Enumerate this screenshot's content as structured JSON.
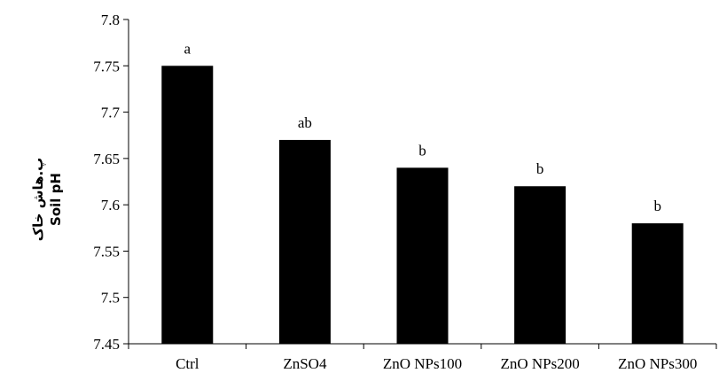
{
  "chart_data": {
    "type": "bar",
    "title": "",
    "xlabel": "",
    "ylabel_lines": [
      "پ.هاش خاک",
      "Soil pH"
    ],
    "categories": [
      "Ctrl",
      "ZnSO4",
      "ZnO NPs100",
      "ZnO NPs200",
      "ZnO NPs300"
    ],
    "values": [
      7.75,
      7.67,
      7.64,
      7.62,
      7.58
    ],
    "data_labels": [
      "a",
      "ab",
      "b",
      "b",
      "b"
    ],
    "ylim": [
      7.45,
      7.8
    ],
    "yticks": [
      7.45,
      7.5,
      7.55,
      7.6,
      7.65,
      7.7,
      7.75,
      7.8
    ],
    "ytick_labels": [
      "7.45",
      "7.5",
      "7.55",
      "7.6",
      "7.65",
      "7.7",
      "7.75",
      "7.8"
    ],
    "grid": false,
    "legend": "none",
    "bar_color": "#000000"
  }
}
